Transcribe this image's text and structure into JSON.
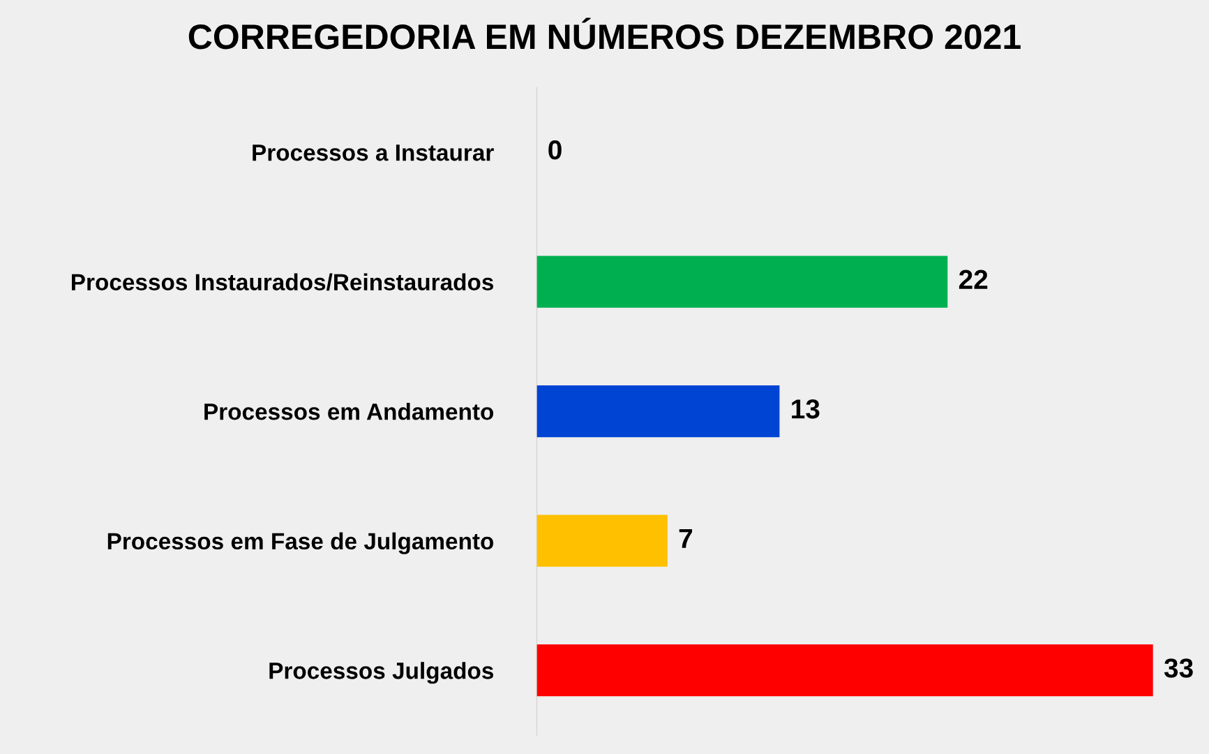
{
  "chart_data": {
    "type": "bar",
    "orientation": "horizontal",
    "title": "CORREGEDORIA EM NÚMEROS DEZEMBRO 2021",
    "categories": [
      "Processos a Instaurar",
      "Processos Instaurados/Reinstaurados",
      "Processos em Andamento",
      "Processos em Fase de Julgamento",
      "Processos Julgados"
    ],
    "values": [
      0,
      22,
      13,
      7,
      33
    ],
    "colors": [
      "#00b0f0",
      "#00b050",
      "#0044d4",
      "#ffc000",
      "#ff0000"
    ],
    "data_labels": true,
    "xlim": [
      0,
      36
    ],
    "tick_labels": "y"
  }
}
